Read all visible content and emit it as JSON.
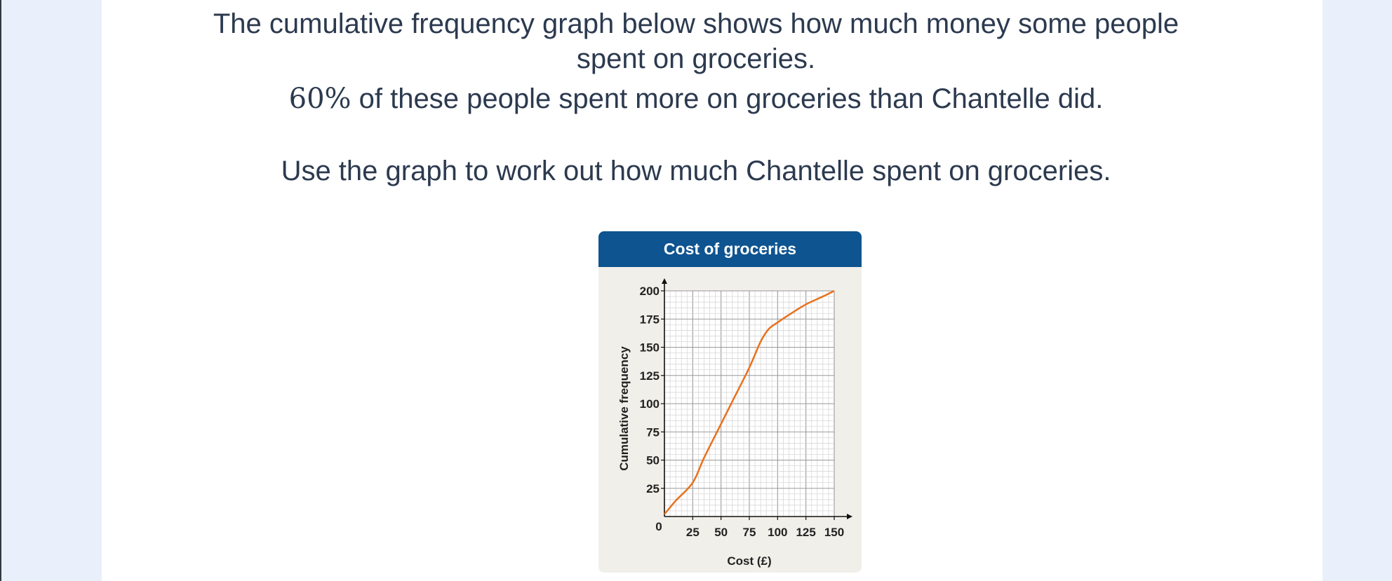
{
  "question": {
    "line1": "The cumulative frequency graph below shows how much money some people",
    "line2": "spent on groceries.",
    "line3_pct": "60%",
    "line3_rest": " of these people spent more on groceries than Chantelle did.",
    "line4": "Use the graph to work out how much Chantelle spent on groceries."
  },
  "chart_data": {
    "type": "line",
    "title": "Cost of groceries",
    "xlabel": "Cost (£)",
    "ylabel": "Cumulative frequency",
    "xlim": [
      0,
      150
    ],
    "ylim": [
      0,
      200
    ],
    "xticks": [
      "0",
      "25",
      "50",
      "75",
      "100",
      "125",
      "150"
    ],
    "yticks": [
      "25",
      "50",
      "75",
      "100",
      "125",
      "150",
      "175",
      "200"
    ],
    "grid": true,
    "series": [
      {
        "x": [
          0,
          10,
          25,
          35,
          50,
          62,
          75,
          85,
          92,
          100,
          112,
          125,
          140,
          150
        ],
        "y": [
          2,
          14,
          30,
          52,
          82,
          106,
          132,
          155,
          166,
          172,
          180,
          188,
          195,
          200
        ],
        "color": "#e8711c"
      }
    ],
    "colors": {
      "header": "#0d5490",
      "background": "#f1efe9",
      "curve": "#e8711c"
    }
  }
}
